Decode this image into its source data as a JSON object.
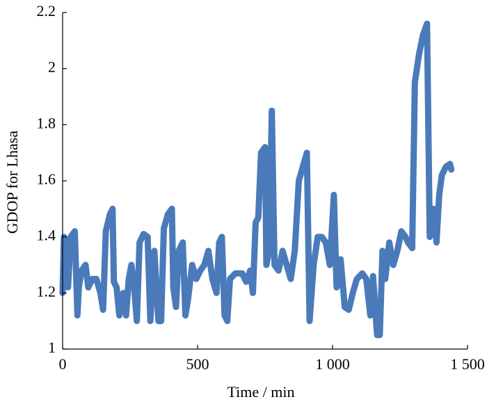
{
  "chart_data": {
    "type": "line",
    "xlabel": "Time / min",
    "ylabel": "GDOP for Lhasa",
    "color": "#4a7ab9",
    "x": [
      0,
      5,
      15,
      20,
      30,
      45,
      55,
      60,
      70,
      85,
      95,
      110,
      125,
      140,
      150,
      160,
      175,
      185,
      190,
      200,
      210,
      225,
      235,
      245,
      255,
      265,
      275,
      285,
      300,
      315,
      325,
      340,
      355,
      365,
      375,
      390,
      405,
      410,
      420,
      430,
      445,
      455,
      465,
      480,
      495,
      510,
      525,
      540,
      555,
      570,
      580,
      590,
      600,
      610,
      620,
      640,
      665,
      680,
      695,
      705,
      715,
      725,
      735,
      750,
      755,
      765,
      775,
      785,
      800,
      815,
      830,
      845,
      860,
      875,
      890,
      905,
      915,
      930,
      945,
      960,
      975,
      990,
      1005,
      1015,
      1030,
      1045,
      1060,
      1075,
      1090,
      1110,
      1125,
      1140,
      1150,
      1165,
      1175,
      1185,
      1195,
      1210,
      1225,
      1240,
      1255,
      1270,
      1280,
      1295,
      1305,
      1320,
      1335,
      1350,
      1360,
      1375,
      1385,
      1395,
      1405,
      1420,
      1435,
      1440
    ],
    "values": [
      1.2,
      1.4,
      1.38,
      1.22,
      1.4,
      1.42,
      1.12,
      1.22,
      1.28,
      1.3,
      1.22,
      1.25,
      1.25,
      1.2,
      1.14,
      1.42,
      1.48,
      1.5,
      1.24,
      1.22,
      1.12,
      1.2,
      1.12,
      1.25,
      1.3,
      1.22,
      1.1,
      1.38,
      1.41,
      1.4,
      1.1,
      1.35,
      1.1,
      1.1,
      1.43,
      1.48,
      1.5,
      1.22,
      1.15,
      1.35,
      1.38,
      1.12,
      1.18,
      1.3,
      1.25,
      1.28,
      1.3,
      1.35,
      1.25,
      1.2,
      1.38,
      1.4,
      1.12,
      1.1,
      1.25,
      1.27,
      1.27,
      1.24,
      1.28,
      1.2,
      1.45,
      1.47,
      1.7,
      1.72,
      1.3,
      1.35,
      1.85,
      1.3,
      1.28,
      1.35,
      1.3,
      1.25,
      1.35,
      1.6,
      1.65,
      1.7,
      1.1,
      1.3,
      1.4,
      1.4,
      1.38,
      1.3,
      1.55,
      1.22,
      1.32,
      1.15,
      1.14,
      1.2,
      1.25,
      1.27,
      1.25,
      1.12,
      1.26,
      1.05,
      1.05,
      1.35,
      1.25,
      1.38,
      1.3,
      1.35,
      1.42,
      1.4,
      1.38,
      1.36,
      1.95,
      2.05,
      2.12,
      2.16,
      1.4,
      1.5,
      1.38,
      1.55,
      1.62,
      1.65,
      1.66,
      1.64
    ],
    "xlim": [
      0,
      1500
    ],
    "xticks": [
      0,
      500,
      {
        "value": 1000,
        "label": "1 000"
      },
      {
        "value": 1500,
        "label": "1 500"
      }
    ],
    "ylim": [
      1,
      2.2
    ],
    "yticks": [
      1,
      1.2,
      1.4,
      1.6,
      1.8,
      2,
      2.2
    ]
  }
}
